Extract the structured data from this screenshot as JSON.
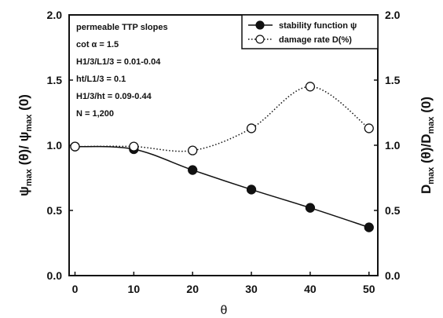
{
  "chart_data": {
    "type": "line",
    "x": [
      0,
      10,
      20,
      30,
      40,
      50
    ],
    "xlim": [
      -1,
      51.5
    ],
    "xticks": [
      "0",
      "10",
      "20",
      "30",
      "40",
      "50"
    ],
    "xlabel": "θ",
    "ylim": [
      0.0,
      2.0
    ],
    "yticks_left": [
      "0.0",
      "0.5",
      "1.0",
      "1.5",
      "2.0"
    ],
    "yticks_right": [
      "0.0",
      "0.5",
      "1.0",
      "1.5",
      "2.0"
    ],
    "ylabel_left": "ψmax (θ)/ ψmax (0)",
    "ylabel_right": "Dmax (θ)/Dmax (0)",
    "series": [
      {
        "name": "stability function ψ",
        "marker": "filled-circle",
        "line": "solid",
        "values": [
          0.99,
          0.97,
          0.81,
          0.66,
          0.52,
          0.37
        ]
      },
      {
        "name": "damage rate D(%)",
        "marker": "open-circle",
        "line": "dotted",
        "values": [
          0.99,
          0.99,
          0.96,
          1.13,
          1.45,
          1.13
        ]
      }
    ],
    "legend_position": "top-right",
    "annotations": [
      "permeable TTP slopes",
      "cot α = 1.5",
      "H1/3/L1/3 = 0.01-0.04",
      "ht/L1/3 = 0.1",
      "H1/3/ht = 0.09-0.44",
      "N = 1,200"
    ],
    "grid": false
  }
}
